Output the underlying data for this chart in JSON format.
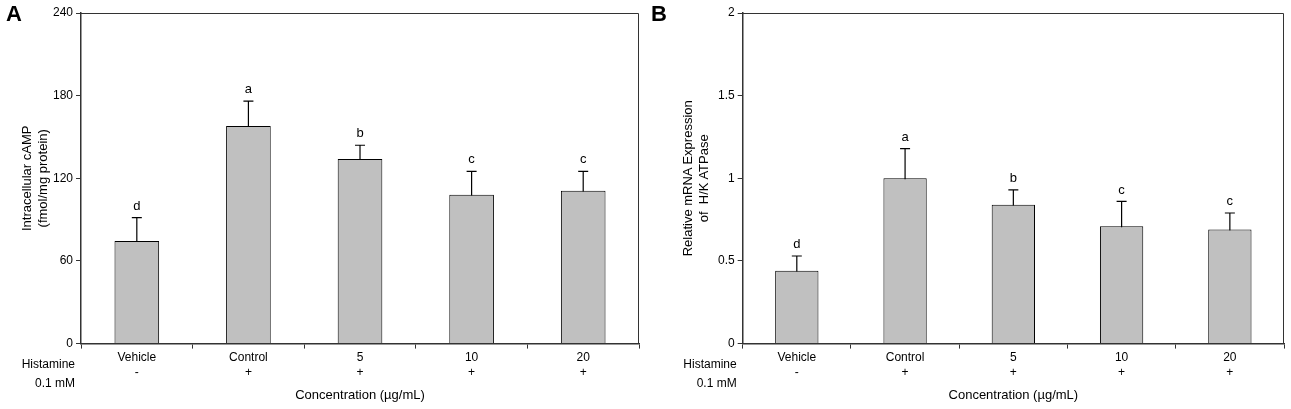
{
  "chart_data": [
    {
      "type": "bar",
      "title": "A",
      "xlabel": "Concentration (µg/mL)",
      "ylabel": "Intracellular cAMP\n(fmol/mg protein)",
      "categories": [
        "Vehicle\n-",
        "Control\n+",
        "5\n+",
        "10\n+",
        "20\n+"
      ],
      "values": [
        74.5,
        158,
        134,
        108,
        111
      ],
      "errors": [
        17,
        18,
        10,
        17,
        14
      ],
      "color": "#c0c0c0",
      "ylim": [
        0,
        240
      ],
      "yticks": [
        0,
        60,
        120,
        180,
        240
      ],
      "grid": false,
      "legend": false,
      "value_labels": [
        "d",
        "a",
        "b",
        "c",
        "c"
      ],
      "annotations": [
        "Histamine\n0.1 mM"
      ]
    },
    {
      "type": "bar",
      "title": "B",
      "xlabel": "Concentration (µg/mL)",
      "ylabel": "Relative mRNA Expression\nof  H/K ATPase",
      "categories": [
        "Vehicle\n-",
        "Control\n+",
        "5\n+",
        "10\n+",
        "20\n+"
      ],
      "values": [
        0.44,
        1.0,
        0.84,
        0.71,
        0.69
      ],
      "errors": [
        0.09,
        0.18,
        0.09,
        0.15,
        0.1
      ],
      "color": "#c0c0c0",
      "ylim": [
        0,
        2
      ],
      "yticks": [
        0,
        0.5,
        1,
        1.5,
        2
      ],
      "grid": false,
      "legend": false,
      "value_labels": [
        "d",
        "a",
        "b",
        "c",
        "c"
      ],
      "annotations": [
        "Histamine\n0.1 mM"
      ]
    }
  ]
}
